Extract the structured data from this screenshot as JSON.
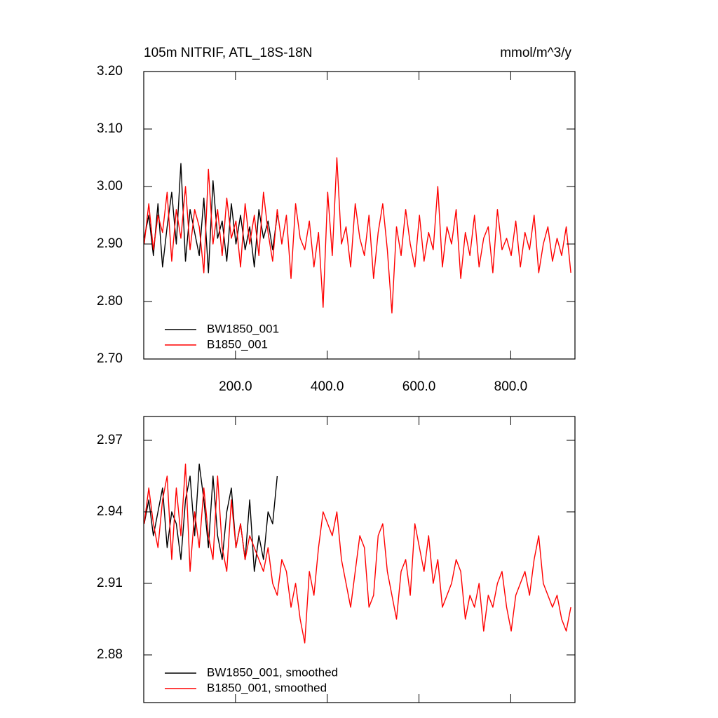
{
  "chart_data": [
    {
      "type": "line",
      "title": "105m NITRIF, ATL_18S-18N",
      "units": "mmol/m^3/y",
      "x": [
        1,
        11,
        21,
        31,
        41,
        51,
        61,
        71,
        81,
        91,
        101,
        111,
        121,
        131,
        141,
        151,
        161,
        171,
        181,
        191,
        201,
        211,
        221,
        231,
        241,
        251,
        261,
        271,
        281,
        291,
        301,
        311,
        321,
        331,
        341,
        351,
        361,
        371,
        381,
        391,
        401,
        411,
        421,
        431,
        441,
        451,
        461,
        471,
        481,
        491,
        501,
        511,
        521,
        531,
        541,
        551,
        561,
        571,
        581,
        591,
        601,
        611,
        621,
        631,
        641,
        651,
        661,
        671,
        681,
        691,
        701,
        711,
        721,
        731,
        741,
        751,
        761,
        771,
        781,
        791,
        801,
        811,
        821,
        831,
        841,
        851,
        861,
        871,
        881,
        891,
        901,
        911,
        921,
        931
      ],
      "xlim": [
        0,
        940
      ],
      "xticks": [
        {
          "value": 200,
          "label": "200.0"
        },
        {
          "value": 400,
          "label": "400.0"
        },
        {
          "value": 600,
          "label": "600.0"
        },
        {
          "value": 800,
          "label": "800.0"
        }
      ],
      "ylim": [
        2.7,
        3.2
      ],
      "yticks": [
        {
          "value": 2.7,
          "label": "2.70"
        },
        {
          "value": 2.8,
          "label": "2.80"
        },
        {
          "value": 2.9,
          "label": "2.90"
        },
        {
          "value": 3.0,
          "label": "3.00"
        },
        {
          "value": 3.1,
          "label": "3.10"
        },
        {
          "value": 3.2,
          "label": "3.20"
        }
      ],
      "show_xtick_labels": true,
      "legend": "lower left",
      "series": [
        {
          "name": "BW1850_001",
          "color": "#000000",
          "values": [
            2.91,
            2.95,
            2.88,
            2.97,
            2.86,
            2.93,
            2.99,
            2.9,
            3.04,
            2.87,
            2.96,
            2.92,
            2.88,
            2.98,
            2.85,
            3.01,
            2.91,
            2.94,
            2.87,
            2.97,
            2.9,
            2.95,
            2.89,
            2.93,
            2.86,
            2.96,
            2.91,
            2.94,
            2.89,
            2.95,
            null,
            null,
            null,
            null,
            null,
            null,
            null,
            null,
            null,
            null,
            null,
            null,
            null,
            null,
            null,
            null,
            null,
            null,
            null,
            null,
            null,
            null,
            null,
            null,
            null,
            null,
            null,
            null,
            null,
            null,
            null,
            null,
            null,
            null,
            null,
            null,
            null,
            null,
            null,
            null,
            null,
            null,
            null,
            null,
            null,
            null,
            null,
            null,
            null,
            null,
            null,
            null,
            null,
            null,
            null,
            null,
            null,
            null,
            null,
            null,
            null,
            null,
            null,
            null
          ]
        },
        {
          "name": "B1850_001",
          "color": "#ff0000",
          "values": [
            2.9,
            2.97,
            2.89,
            2.95,
            2.92,
            2.99,
            2.87,
            2.96,
            2.91,
            3.0,
            2.89,
            2.96,
            2.93,
            2.85,
            3.03,
            2.9,
            2.96,
            2.88,
            2.98,
            2.91,
            2.94,
            2.86,
            2.97,
            2.9,
            2.95,
            2.88,
            2.99,
            2.92,
            2.87,
            2.96,
            2.9,
            2.95,
            2.84,
            2.97,
            2.91,
            2.89,
            2.94,
            2.86,
            2.92,
            2.79,
            2.99,
            2.88,
            3.05,
            2.9,
            2.93,
            2.86,
            2.97,
            2.91,
            2.88,
            2.95,
            2.84,
            2.92,
            2.97,
            2.89,
            2.78,
            2.93,
            2.88,
            2.96,
            2.9,
            2.86,
            2.95,
            2.87,
            2.92,
            2.89,
            3.0,
            2.86,
            2.93,
            2.9,
            2.96,
            2.84,
            2.92,
            2.88,
            2.95,
            2.86,
            2.91,
            2.93,
            2.85,
            2.96,
            2.89,
            2.91,
            2.88,
            2.94,
            2.86,
            2.92,
            2.89,
            2.95,
            2.85,
            2.9,
            2.93,
            2.87,
            2.91,
            2.88,
            2.93,
            2.85
          ]
        }
      ]
    },
    {
      "type": "line",
      "x": [
        1,
        11,
        21,
        31,
        41,
        51,
        61,
        71,
        81,
        91,
        101,
        111,
        121,
        131,
        141,
        151,
        161,
        171,
        181,
        191,
        201,
        211,
        221,
        231,
        241,
        251,
        261,
        271,
        281,
        291,
        301,
        311,
        321,
        331,
        341,
        351,
        361,
        371,
        381,
        391,
        401,
        411,
        421,
        431,
        441,
        451,
        461,
        471,
        481,
        491,
        501,
        511,
        521,
        531,
        541,
        551,
        561,
        571,
        581,
        591,
        601,
        611,
        621,
        631,
        641,
        651,
        661,
        671,
        681,
        691,
        701,
        711,
        721,
        731,
        741,
        751,
        761,
        771,
        781,
        791,
        801,
        811,
        821,
        831,
        841,
        851,
        861,
        871,
        881,
        891,
        901,
        911,
        921,
        931
      ],
      "xlim": [
        0,
        940
      ],
      "xticks": [
        200,
        400,
        600,
        800
      ],
      "ylim": [
        2.86,
        2.98
      ],
      "yticks": [
        2.88,
        2.91,
        2.94,
        2.97
      ],
      "show_xtick_labels": false,
      "legend": "lower left",
      "series": [
        {
          "name": "BW1850_001, smoothed",
          "color": "#000000",
          "values": [
            2.935,
            2.945,
            2.93,
            2.94,
            2.95,
            2.925,
            2.94,
            2.935,
            2.92,
            2.945,
            2.955,
            2.93,
            2.96,
            2.945,
            2.925,
            2.955,
            2.93,
            2.92,
            2.94,
            2.95,
            2.925,
            2.935,
            2.92,
            2.945,
            2.915,
            2.93,
            2.92,
            2.94,
            2.935,
            2.955,
            null,
            null,
            null,
            null,
            null,
            null,
            null,
            null,
            null,
            null,
            null,
            null,
            null,
            null,
            null,
            null,
            null,
            null,
            null,
            null,
            null,
            null,
            null,
            null,
            null,
            null,
            null,
            null,
            null,
            null,
            null,
            null,
            null,
            null,
            null,
            null,
            null,
            null,
            null,
            null,
            null,
            null,
            null,
            null,
            null,
            null,
            null,
            null,
            null,
            null,
            null,
            null,
            null,
            null,
            null,
            null,
            null,
            null,
            null,
            null,
            null,
            null,
            null,
            null
          ]
        },
        {
          "name": "B1850_001, smoothed",
          "color": "#ff0000",
          "values": [
            2.935,
            2.95,
            2.935,
            2.925,
            2.945,
            2.955,
            2.92,
            2.95,
            2.93,
            2.96,
            2.915,
            2.94,
            2.925,
            2.95,
            2.93,
            2.92,
            2.955,
            2.925,
            2.915,
            2.945,
            2.925,
            2.935,
            2.92,
            2.93,
            2.925,
            2.92,
            2.915,
            2.925,
            2.91,
            2.905,
            2.92,
            2.915,
            2.9,
            2.91,
            2.895,
            2.885,
            2.915,
            2.905,
            2.925,
            2.94,
            2.935,
            2.93,
            2.94,
            2.92,
            2.91,
            2.9,
            2.915,
            2.93,
            2.925,
            2.9,
            2.905,
            2.93,
            2.935,
            2.915,
            2.905,
            2.895,
            2.915,
            2.92,
            2.905,
            2.935,
            2.925,
            2.915,
            2.93,
            2.91,
            2.92,
            2.9,
            2.905,
            2.91,
            2.92,
            2.915,
            2.895,
            2.905,
            2.9,
            2.91,
            2.89,
            2.905,
            2.9,
            2.91,
            2.915,
            2.9,
            2.89,
            2.905,
            2.91,
            2.915,
            2.905,
            2.92,
            2.93,
            2.91,
            2.905,
            2.9,
            2.905,
            2.895,
            2.89,
            2.9
          ]
        }
      ]
    }
  ]
}
